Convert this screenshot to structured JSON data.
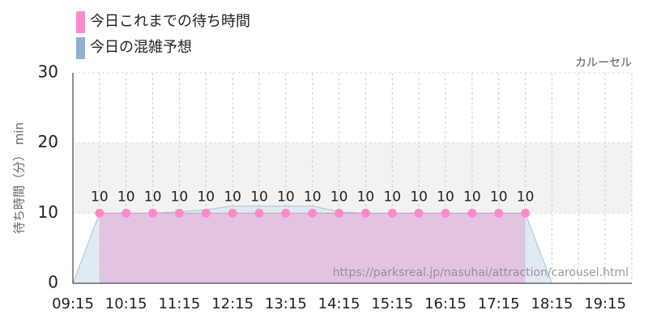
{
  "chart_data": {
    "type": "area",
    "annotation": "カルーセル",
    "watermark": "https://parksreal.jp/nasuhai/attraction/carousel.html",
    "y_label": "待ち時間（分） min",
    "categories": [
      "09:15",
      null,
      "10:15",
      null,
      "11:15",
      null,
      "12:15",
      null,
      "13:15",
      null,
      "14:15",
      null,
      "15:15",
      null,
      "16:15",
      null,
      "17:15",
      null,
      "18:15",
      null,
      "19:15",
      null
    ],
    "series": [
      {
        "name": "今日これまでの待ち時間",
        "color": "#ff88cc",
        "fill": "#e2bfdf",
        "values": [
          null,
          10,
          10,
          10,
          10,
          10,
          10,
          10,
          10,
          10,
          10,
          10,
          10,
          10,
          10,
          10,
          10,
          10,
          null,
          null,
          null,
          null
        ]
      },
      {
        "name": "今日の混雑予想",
        "color": "#8fb0d0",
        "fill": "#dde8f1",
        "values": [
          0,
          10,
          10,
          10,
          10.2,
          10.5,
          11,
          11,
          11,
          11,
          10.2,
          10,
          10,
          10,
          10,
          10,
          10,
          10,
          0,
          0,
          0,
          0
        ]
      }
    ],
    "ylim": [
      0,
      30
    ],
    "yticks": [
      0,
      10,
      20,
      30
    ],
    "band": [
      10,
      20
    ],
    "grid": true
  }
}
